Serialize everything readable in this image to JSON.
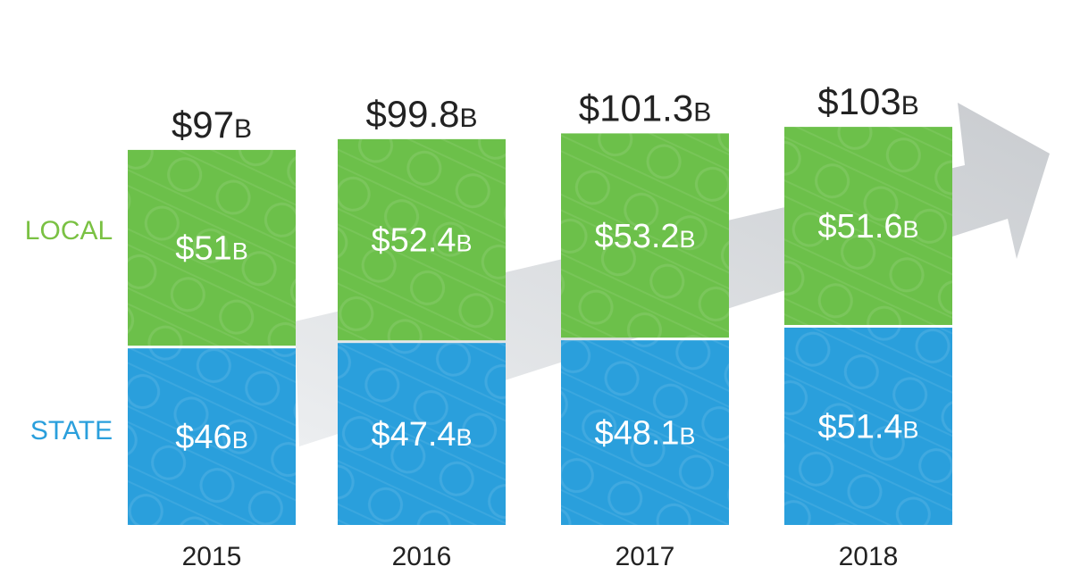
{
  "chart_data": {
    "type": "bar",
    "stacked": true,
    "categories": [
      "2015",
      "2016",
      "2017",
      "2018"
    ],
    "series": [
      {
        "name": "STATE",
        "values": [
          46,
          47.4,
          48.1,
          51.4
        ],
        "labels": [
          "$46",
          "$47.4",
          "$48.1",
          "$51.4"
        ],
        "color": "#2a9fdc"
      },
      {
        "name": "LOCAL",
        "values": [
          51,
          52.4,
          53.2,
          51.6
        ],
        "labels": [
          "$51",
          "$52.4",
          "$53.2",
          "$51.6"
        ],
        "color": "#6cc04a"
      }
    ],
    "totals": [
      97,
      99.8,
      101.3,
      103
    ],
    "total_labels": [
      "$97",
      "$99.8",
      "$101.3",
      "$103"
    ],
    "unit_suffix": "B",
    "legend_position": "left",
    "grid": false,
    "decoration": "upward-trend-arrow",
    "colors": {
      "state": "#2a9fdc",
      "local": "#6cc04a",
      "state_text": "#2a9fdc",
      "local_text": "#7ac143",
      "label": "#222222",
      "arrow": "#d5d8dc"
    }
  }
}
